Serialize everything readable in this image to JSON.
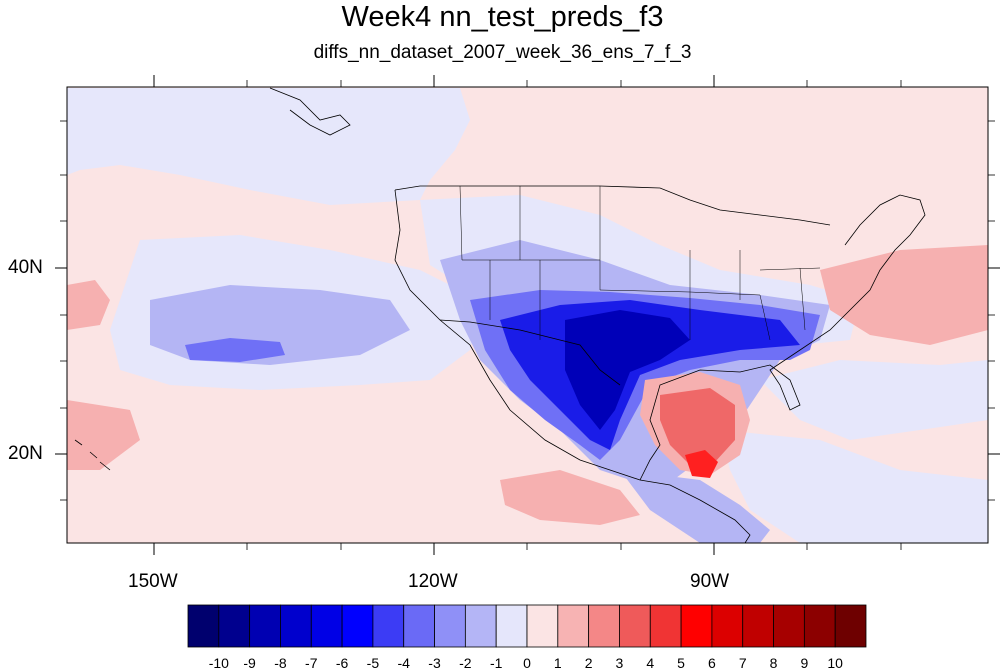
{
  "title": "Week4 nn_test_preds_f3",
  "subtitle": "diffs_nn_dataset_2007_week_36_ens_7_f_3",
  "map": {
    "lon_tick_labels": [
      "150W",
      "120W",
      "90W"
    ],
    "lat_tick_labels": [
      "40N",
      "20N"
    ],
    "colors": {
      "ocean_background": "#fbe4e4",
      "weak_negative": "#e6e7fb",
      "light_negative": "#b4b5f4",
      "mid_negative": "#6f70f6",
      "strong_negative": "#1a1ce8",
      "deep_negative": "#0000b8",
      "light_positive": "#f6b0b0",
      "mid_positive": "#ef6868",
      "strong_positive": "#ff2020"
    }
  },
  "colorbar": {
    "labels": [
      "-10",
      "-9",
      "-8",
      "-7",
      "-6",
      "-5",
      "-4",
      "-3",
      "-2",
      "-1",
      "0",
      "1",
      "2",
      "3",
      "4",
      "5",
      "6",
      "7",
      "8",
      "9",
      "10"
    ],
    "colors": [
      "#00006e",
      "#00008e",
      "#0000b2",
      "#0000cd",
      "#0000e6",
      "#0000ff",
      "#3c3cf5",
      "#6a6af6",
      "#8f90f7",
      "#b4b5f6",
      "#e5e6fb",
      "#fbe4e4",
      "#f7b3b3",
      "#f48787",
      "#ef5a5a",
      "#f03434",
      "#ff0000",
      "#dc0000",
      "#c00000",
      "#a60000",
      "#8c0000",
      "#6e0000"
    ]
  }
}
